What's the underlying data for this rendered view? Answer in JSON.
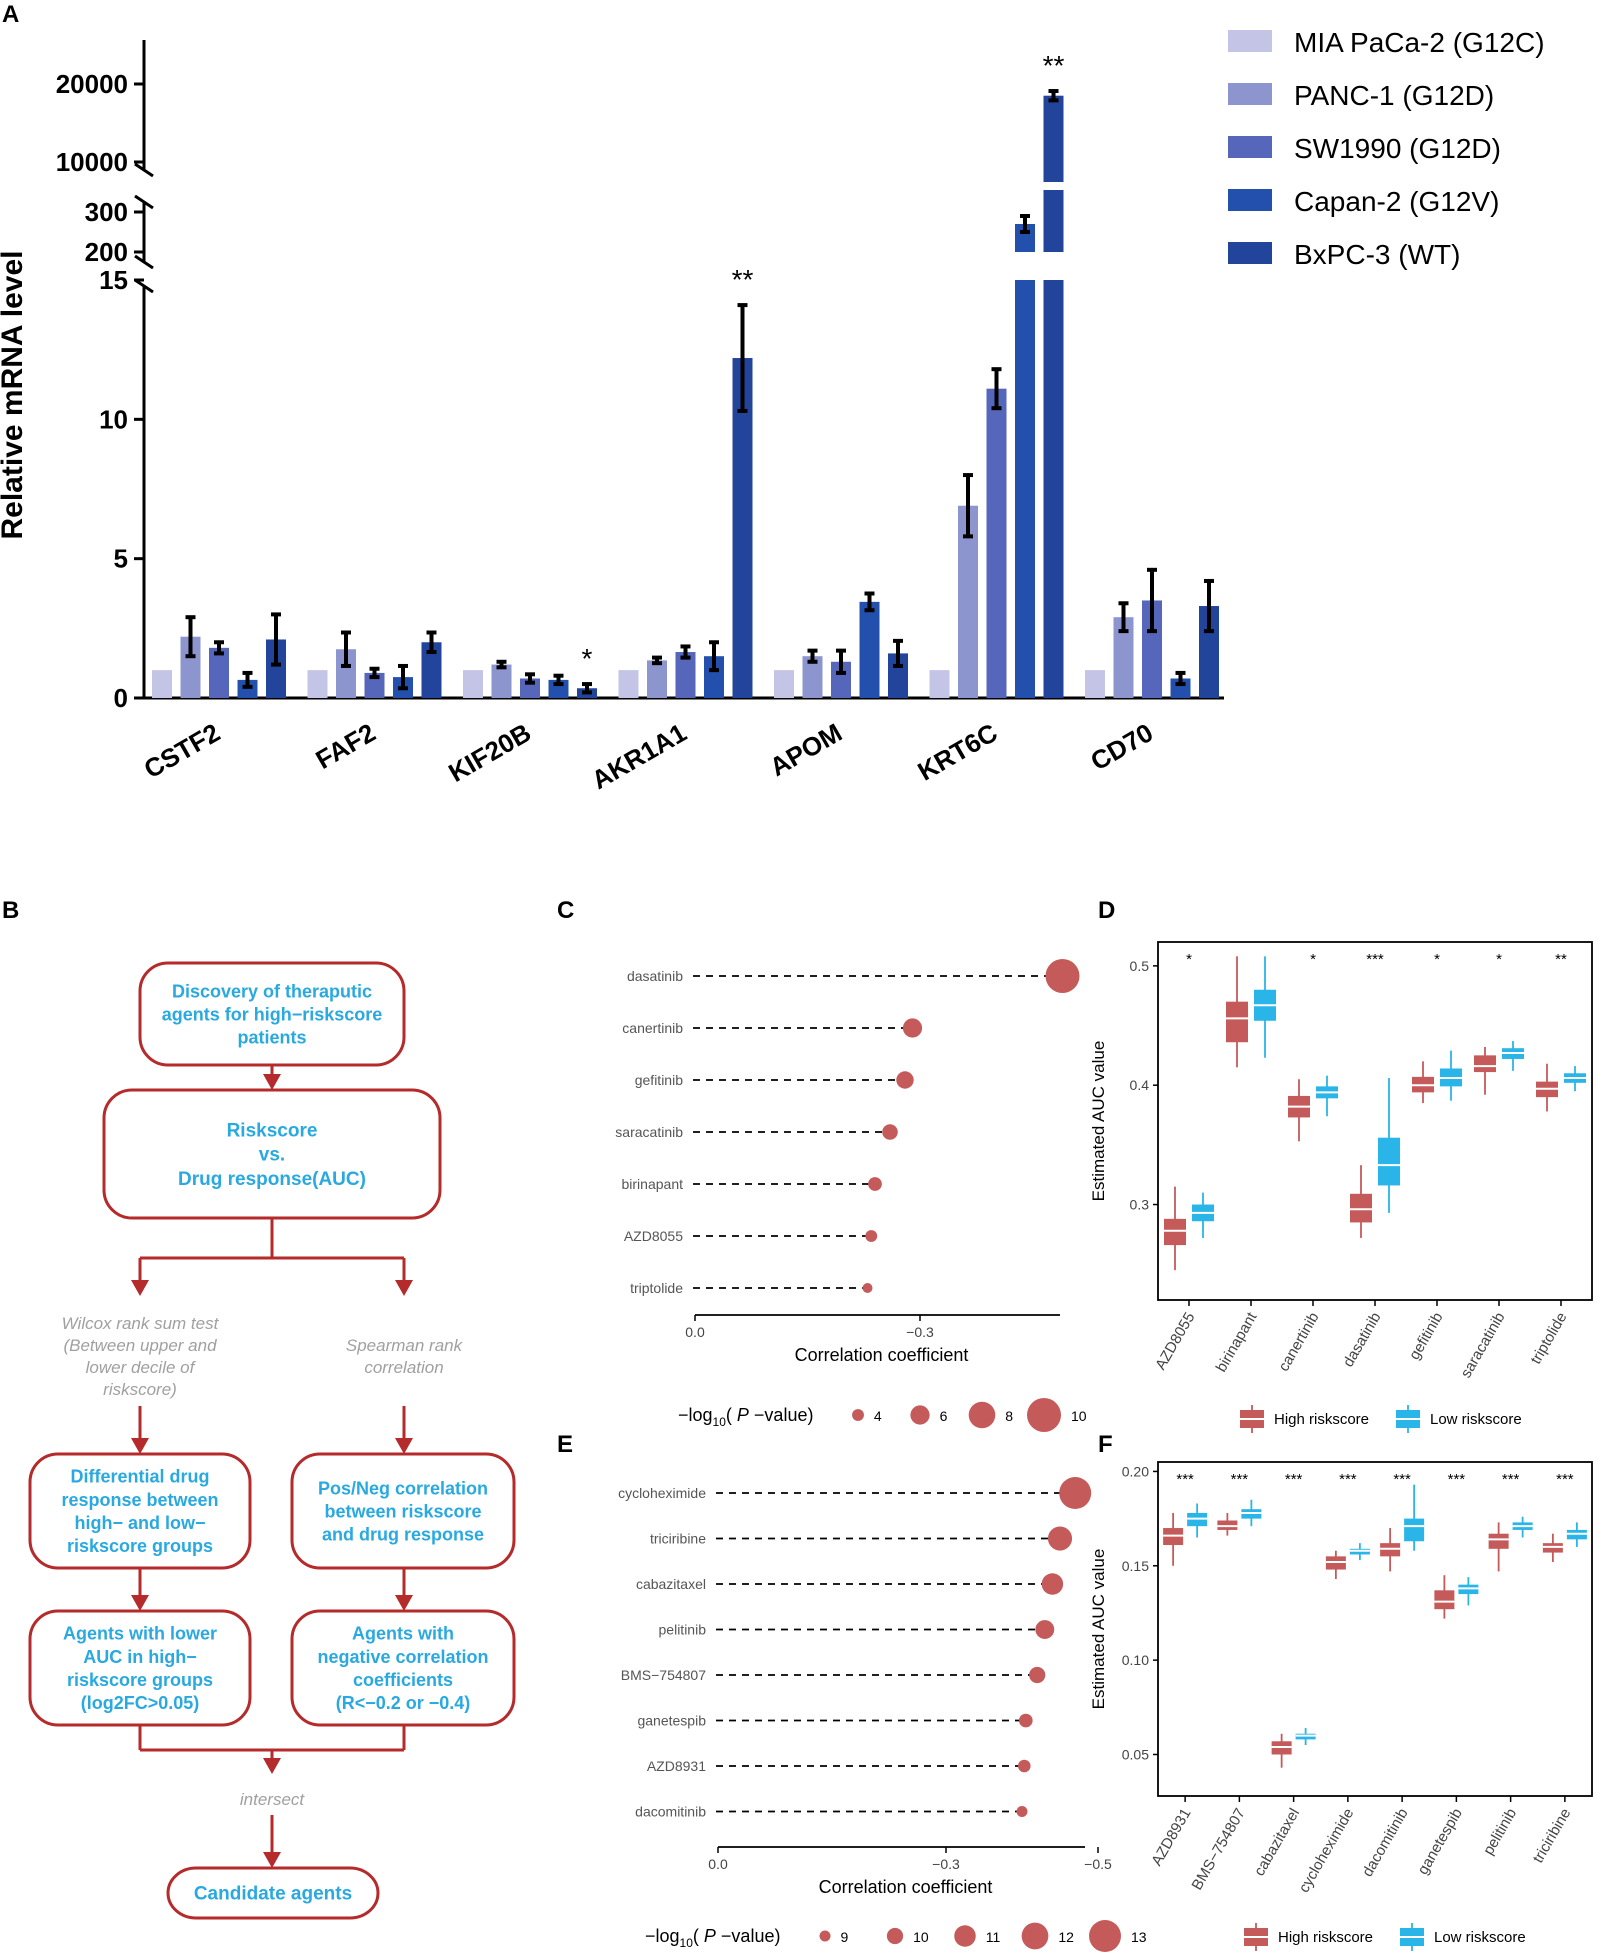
{
  "panels": {
    "A": "A",
    "B": "B",
    "C": "C",
    "D": "D",
    "E": "E",
    "F": "F"
  },
  "colors": {
    "mia": "#c4c5e6",
    "panc": "#8d95cf",
    "sw": "#5566bb",
    "capan": "#2450ad",
    "bxpc": "#22449a",
    "high": "#c55a5a",
    "low": "#29b5e8",
    "flow": "#b52a2a",
    "flow_text": "#29a9e0",
    "gray_text": "#a0a0a0"
  },
  "chart_data": [
    {
      "id": "A",
      "type": "bar",
      "title": "",
      "ylabel": "Relative mRNA level",
      "y_axis_break": true,
      "ylim_segments": [
        [
          0,
          15
        ],
        [
          200,
          300
        ],
        [
          10000,
          20000
        ]
      ],
      "yticks_lower": [
        0,
        5,
        10,
        15
      ],
      "yticks_upper": [
        200,
        300,
        10000,
        20000
      ],
      "ytick_labels": [
        "0",
        "5",
        "10",
        "15",
        "200",
        "300",
        "10000",
        "20000"
      ],
      "categories": [
        "CSTF2",
        "FAF2",
        "KIF20B",
        "AKR1A1",
        "APOM",
        "KRT6C",
        "CD70"
      ],
      "series": [
        {
          "name": "MIA PaCa-2 (G12C)",
          "values": [
            1,
            1,
            1,
            1,
            1,
            1,
            1
          ],
          "errors": [
            0,
            0,
            0,
            0,
            0,
            0,
            0
          ]
        },
        {
          "name": "PANC-1 (G12D)",
          "values": [
            2.2,
            1.75,
            1.2,
            1.35,
            1.5,
            6.9,
            2.9
          ],
          "errors": [
            0.7,
            0.6,
            0.1,
            0.1,
            0.2,
            1.1,
            0.5
          ]
        },
        {
          "name": "SW1990 (G12D)",
          "values": [
            1.8,
            0.9,
            0.7,
            1.65,
            1.3,
            11.1,
            3.5
          ],
          "errors": [
            0.2,
            0.15,
            0.15,
            0.2,
            0.4,
            0.7,
            1.1
          ]
        },
        {
          "name": "Capan-2 (G12V)",
          "values": [
            0.65,
            0.75,
            0.65,
            1.5,
            3.45,
            270,
            0.7
          ],
          "errors": [
            0.25,
            0.4,
            0.15,
            0.5,
            0.3,
            20,
            0.2
          ]
        },
        {
          "name": "BxPC-3 (WT)",
          "values": [
            2.1,
            2.0,
            0.35,
            12.2,
            1.6,
            18500,
            3.3
          ],
          "errors": [
            0.9,
            0.35,
            0.15,
            1.9,
            0.45,
            600,
            0.9
          ]
        }
      ],
      "significance": [
        {
          "category": "KIF20B",
          "series": "BxPC-3 (WT)",
          "label": "*"
        },
        {
          "category": "AKR1A1",
          "series": "BxPC-3 (WT)",
          "label": "**"
        },
        {
          "category": "KRT6C",
          "series": "BxPC-3 (WT)",
          "label": "**"
        }
      ],
      "legend": "top-right"
    },
    {
      "id": "C",
      "type": "scatter",
      "subtype": "lollipop",
      "xlabel": "Correlation coefficient",
      "xlim": [
        0,
        -0.5
      ],
      "xticks": [
        0.0,
        -0.3
      ],
      "xtick_labels": [
        "0.0",
        "−0.3"
      ],
      "categories": [
        "dasatinib",
        "canertinib",
        "gefitinib",
        "saracatinib",
        "birinapant",
        "AZD8055",
        "triptolide"
      ],
      "values": [
        -0.49,
        -0.29,
        -0.28,
        -0.26,
        -0.24,
        -0.235,
        -0.23
      ],
      "sizes": [
        10,
        6,
        5.5,
        5,
        4.5,
        4,
        3.5
      ],
      "size_legend": {
        "title_pre": "−log",
        "title_sub": "10",
        "title_mid": "( ",
        "title_p": "P",
        "title_post": " −value)",
        "levels": [
          4,
          6,
          8,
          10
        ],
        "labels": [
          "4",
          "6",
          "8",
          "10"
        ]
      }
    },
    {
      "id": "D",
      "type": "box",
      "ylabel": "Estimated AUC value",
      "ylim": [
        0.22,
        0.52
      ],
      "yticks": [
        0.3,
        0.4,
        0.5
      ],
      "ytick_labels": [
        "0.3",
        "0.4",
        "0.5"
      ],
      "categories": [
        "AZD8055",
        "birinapant",
        "canertinib",
        "dasatinib",
        "gefitinib",
        "saracatinib",
        "triptolide"
      ],
      "significance": [
        "*",
        "",
        "*",
        "***",
        "*",
        "*",
        "**"
      ],
      "groups": [
        "High riskscore",
        "Low riskscore"
      ],
      "high": [
        [
          0.245,
          0.266,
          0.278,
          0.288,
          0.315
        ],
        [
          0.415,
          0.436,
          0.456,
          0.47,
          0.508
        ],
        [
          0.353,
          0.373,
          0.382,
          0.391,
          0.405
        ],
        [
          0.272,
          0.285,
          0.296,
          0.309,
          0.333
        ],
        [
          0.385,
          0.394,
          0.4,
          0.407,
          0.42
        ],
        [
          0.392,
          0.411,
          0.416,
          0.425,
          0.432
        ],
        [
          0.378,
          0.39,
          0.397,
          0.403,
          0.418
        ]
      ],
      "low": [
        [
          0.272,
          0.286,
          0.293,
          0.3,
          0.31
        ],
        [
          0.423,
          0.454,
          0.467,
          0.48,
          0.508
        ],
        [
          0.374,
          0.389,
          0.394,
          0.399,
          0.408
        ],
        [
          0.293,
          0.316,
          0.333,
          0.356,
          0.406
        ],
        [
          0.387,
          0.399,
          0.406,
          0.414,
          0.429
        ],
        [
          0.412,
          0.422,
          0.427,
          0.431,
          0.437
        ],
        [
          0.395,
          0.402,
          0.406,
          0.41,
          0.416
        ]
      ],
      "legend": "bottom"
    },
    {
      "id": "E",
      "type": "scatter",
      "subtype": "lollipop",
      "xlabel": "Correlation coefficient",
      "xlim": [
        0,
        -0.5
      ],
      "xticks": [
        0.0,
        -0.3,
        -0.5
      ],
      "xtick_labels": [
        "0.0",
        "−0.3",
        "−0.5"
      ],
      "categories": [
        "cycloheximide",
        "triciribine",
        "cabazitaxel",
        "pelitinib",
        "BMS−754807",
        "ganetespib",
        "AZD8931",
        "dacomitinib"
      ],
      "values": [
        -0.47,
        -0.45,
        -0.44,
        -0.43,
        -0.42,
        -0.405,
        -0.403,
        -0.4
      ],
      "sizes": [
        13,
        11.5,
        11,
        10.5,
        10,
        9.5,
        9.3,
        9
      ],
      "size_legend": {
        "title_pre": "−log",
        "title_sub": "10",
        "title_mid": "( ",
        "title_p": "P",
        "title_post": " −value)",
        "levels": [
          9,
          10,
          11,
          12,
          13
        ],
        "labels": [
          "9",
          "10",
          "11",
          "12",
          "13"
        ]
      }
    },
    {
      "id": "F",
      "type": "box",
      "ylabel": "Estimated AUC value",
      "ylim": [
        0.028,
        0.205
      ],
      "yticks": [
        0.05,
        0.1,
        0.15,
        0.2
      ],
      "ytick_labels": [
        "0.05",
        "0.10",
        "0.15",
        "0.20"
      ],
      "categories": [
        "AZD8931",
        "BMS−754807",
        "cabazitaxel",
        "cycloheximide",
        "dacomitinib",
        "ganetespib",
        "pelitinib",
        "triciribine"
      ],
      "significance": [
        "***",
        "***",
        "***",
        "***",
        "***",
        "***",
        "***",
        "***"
      ],
      "groups": [
        "High riskscore",
        "Low riskscore"
      ],
      "high": [
        [
          0.15,
          0.161,
          0.166,
          0.17,
          0.178
        ],
        [
          0.166,
          0.169,
          0.171,
          0.174,
          0.178
        ],
        [
          0.043,
          0.05,
          0.054,
          0.057,
          0.061
        ],
        [
          0.143,
          0.148,
          0.152,
          0.155,
          0.158
        ],
        [
          0.147,
          0.155,
          0.159,
          0.162,
          0.17
        ],
        [
          0.122,
          0.127,
          0.131,
          0.137,
          0.145
        ],
        [
          0.147,
          0.159,
          0.164,
          0.167,
          0.173
        ],
        [
          0.152,
          0.157,
          0.16,
          0.162,
          0.167
        ]
      ],
      "low": [
        [
          0.165,
          0.171,
          0.175,
          0.178,
          0.183
        ],
        [
          0.171,
          0.175,
          0.178,
          0.18,
          0.185
        ],
        [
          0.055,
          0.058,
          0.06,
          0.061,
          0.064
        ],
        [
          0.153,
          0.156,
          0.158,
          0.159,
          0.162
        ],
        [
          0.158,
          0.163,
          0.171,
          0.175,
          0.193
        ],
        [
          0.129,
          0.135,
          0.138,
          0.14,
          0.144
        ],
        [
          0.165,
          0.169,
          0.171,
          0.173,
          0.176
        ],
        [
          0.16,
          0.164,
          0.167,
          0.169,
          0.173
        ]
      ],
      "legend": "bottom"
    }
  ],
  "flowchart": {
    "top": "Discovery of theraputic agents for high−riskscore patients",
    "top_lines": [
      "Discovery of theraputic",
      "agents for high−riskscore",
      "patients"
    ],
    "mid_lines": [
      "Riskscore",
      "vs.",
      "Drug response(AUC)"
    ],
    "left_method_lines": [
      "Wilcox rank sum test",
      "(Between upper and",
      "lower decile of",
      "riskscore)"
    ],
    "right_method_lines": [
      "Spearman rank",
      "correlation"
    ],
    "left_box_lines": [
      "Differential drug",
      "response between",
      "high− and low−",
      "riskscore groups"
    ],
    "right_box_lines": [
      "Pos/Neg correlation",
      "between riskscore",
      "and drug response"
    ],
    "left_result_lines": [
      "Agents with lower",
      "AUC in high−",
      "riskscore groups",
      "(log2FC>0.05)"
    ],
    "right_result_lines": [
      "Agents with",
      "negative correlation",
      "coefficients",
      "(R<−0.2 or −0.4)"
    ],
    "intersect": "intersect",
    "final": "Candidate agents"
  }
}
